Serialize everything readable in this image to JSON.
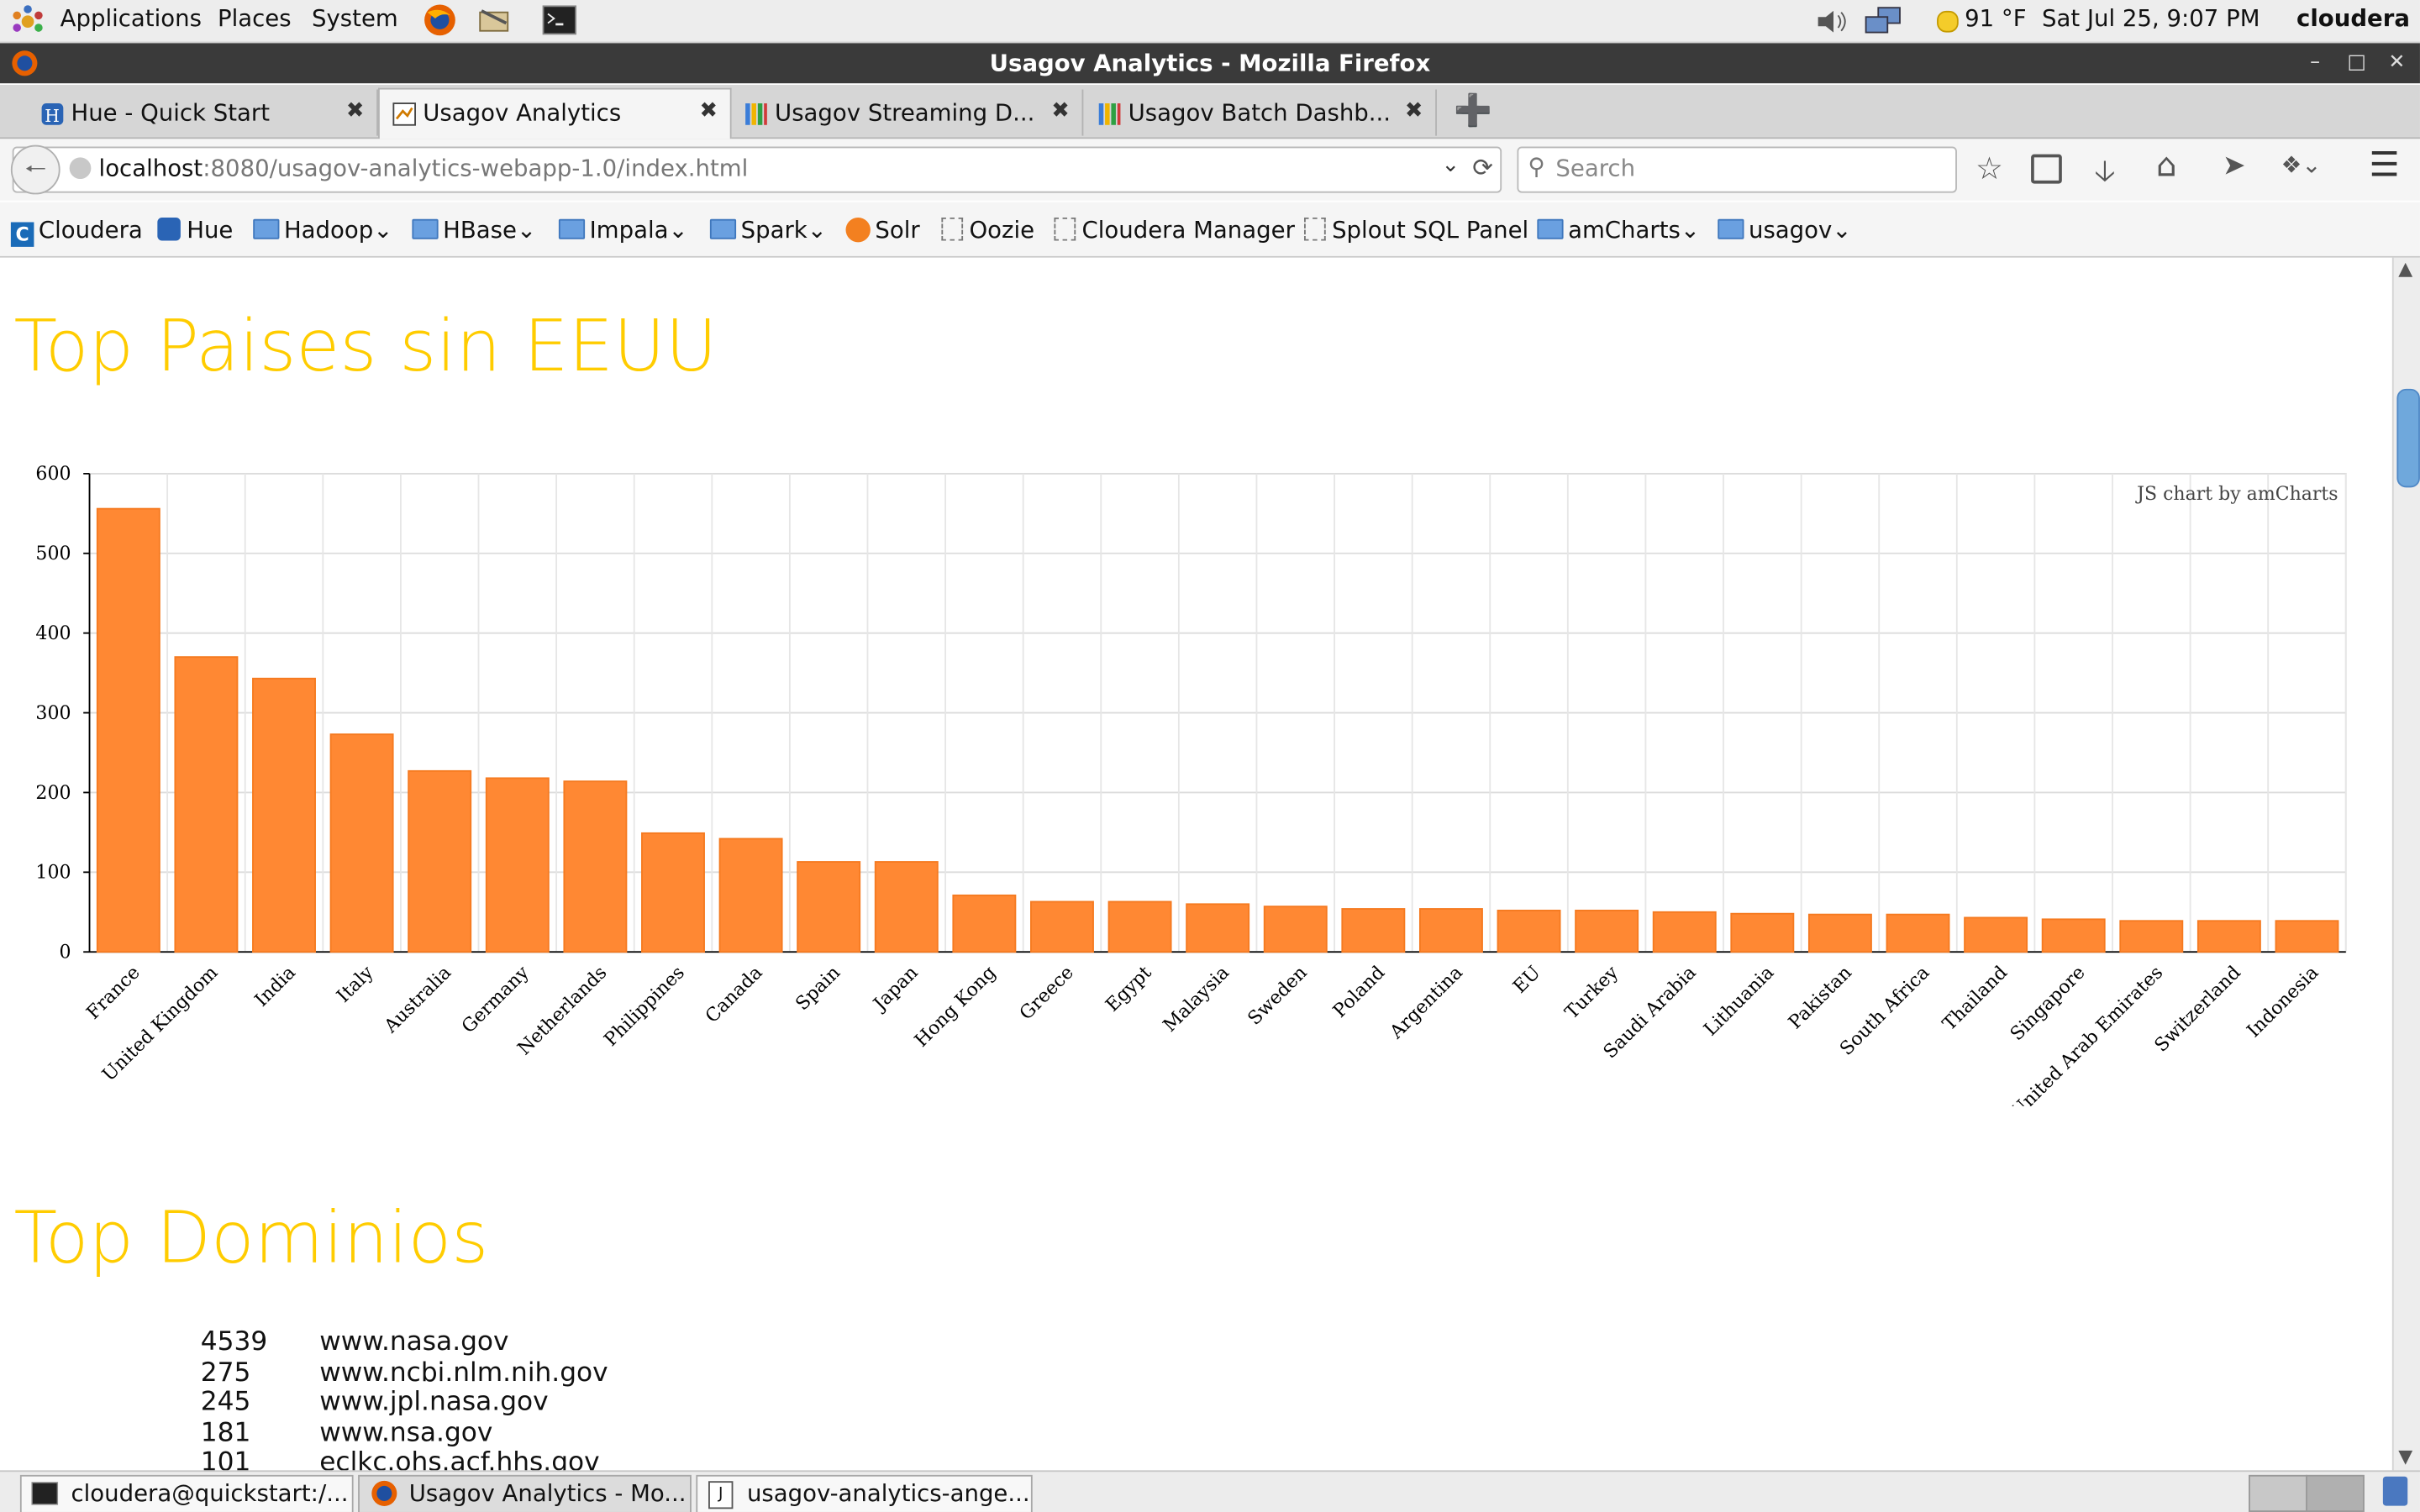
{
  "os_panel": {
    "menus": [
      "Applications",
      "Places",
      "System"
    ],
    "weather": "91 °F",
    "datetime": "Sat Jul 25,  9:07 PM",
    "user": "cloudera"
  },
  "window": {
    "title": "Usagov Analytics - Mozilla Firefox"
  },
  "tabs": [
    {
      "label": "Hue - Quick Start",
      "active": false
    },
    {
      "label": "Usagov Analytics",
      "active": true
    },
    {
      "label": "Usagov Streaming D...",
      "active": false
    },
    {
      "label": "Usagov Batch Dashb...",
      "active": false
    }
  ],
  "navbar": {
    "url_host": "localhost",
    "url_rest": ":8080/usagov-analytics-webapp-1.0/index.html",
    "search_placeholder": "Search"
  },
  "bookmarks": [
    {
      "label": "Cloudera",
      "kind": "cloudera"
    },
    {
      "label": "Hue",
      "kind": "hue"
    },
    {
      "label": "Hadoop",
      "kind": "folder"
    },
    {
      "label": "HBase",
      "kind": "folder"
    },
    {
      "label": "Impala",
      "kind": "folder"
    },
    {
      "label": "Spark",
      "kind": "folder"
    },
    {
      "label": "Solr",
      "kind": "solr"
    },
    {
      "label": "Oozie",
      "kind": "page"
    },
    {
      "label": "Cloudera Manager",
      "kind": "page"
    },
    {
      "label": "Splout SQL Panel",
      "kind": "page"
    },
    {
      "label": "amCharts",
      "kind": "folder"
    },
    {
      "label": "usagov",
      "kind": "folder"
    }
  ],
  "page": {
    "section1_title": "Top Paises sin EEUU",
    "section2_title": "Top Dominios",
    "credit": "JS chart by amCharts",
    "domains": [
      {
        "count": "4539",
        "domain": "www.nasa.gov"
      },
      {
        "count": "275",
        "domain": "www.ncbi.nlm.nih.gov"
      },
      {
        "count": "245",
        "domain": "www.jpl.nasa.gov"
      },
      {
        "count": "181",
        "domain": "www.nsa.gov"
      },
      {
        "count": "101",
        "domain": "eclkc.ohs.acf.hhs.gov"
      }
    ]
  },
  "taskbar": [
    {
      "label": "cloudera@quickstart:/...",
      "active": false
    },
    {
      "label": "Usagov Analytics - Mo...",
      "active": true
    },
    {
      "label": "usagov-analytics-ange...",
      "active": false
    }
  ],
  "chart_data": {
    "type": "bar",
    "categories": [
      "France",
      "United Kingdom",
      "India",
      "Italy",
      "Australia",
      "Germany",
      "Netherlands",
      "Philippines",
      "Canada",
      "Spain",
      "Japan",
      "Hong Kong",
      "Greece",
      "Egypt",
      "Malaysia",
      "Sweden",
      "Poland",
      "Argentina",
      "EU",
      "Turkey",
      "Saudi Arabia",
      "Lithuania",
      "Pakistan",
      "South Africa",
      "Thailand",
      "Singapore",
      "United Arab Emirates",
      "Switzerland",
      "Indonesia"
    ],
    "values": [
      556,
      370,
      343,
      273,
      227,
      218,
      214,
      149,
      142,
      113,
      113,
      71,
      63,
      63,
      60,
      57,
      54,
      54,
      52,
      52,
      50,
      48,
      47,
      47,
      43,
      41,
      39,
      39,
      39
    ],
    "ylim": [
      0,
      600
    ],
    "yticks": [
      0,
      100,
      200,
      300,
      400,
      500,
      600
    ],
    "grid": true,
    "bar_color": "#ff8833"
  }
}
